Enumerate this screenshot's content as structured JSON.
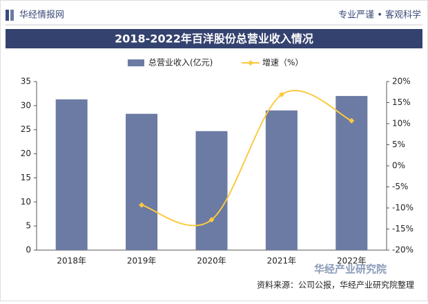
{
  "header": {
    "brand": "华经情报网",
    "slogan": "专业严谨 • 客观科学"
  },
  "chart_data": {
    "type": "bar_line",
    "title": "2018-2022年百洋股份总营业收入情况",
    "categories": [
      "2018年",
      "2019年",
      "2020年",
      "2021年",
      "2022年"
    ],
    "series": [
      {
        "name": "总营业收入(亿元)",
        "color": "#6b7ba3",
        "type": "bar",
        "values": [
          31.3,
          28.3,
          24.7,
          29.0,
          32.0
        ]
      },
      {
        "name": "增速（%）",
        "color": "#fcc93f",
        "type": "line",
        "axis": "y2",
        "values": [
          null,
          -9.3,
          -12.8,
          16.9,
          10.7
        ]
      }
    ],
    "ylim": [
      0,
      35
    ],
    "yticks": [
      0,
      5,
      10,
      15,
      20,
      25,
      30,
      35
    ],
    "y2lim": [
      -20,
      20
    ],
    "y2ticks": [
      {
        "value": -20,
        "label": "-20%"
      },
      {
        "value": -15,
        "label": "-15%"
      },
      {
        "value": -10,
        "label": "-10%"
      },
      {
        "value": -5,
        "label": "-5%"
      },
      {
        "value": 0,
        "label": "0%"
      },
      {
        "value": 5,
        "label": "5%"
      },
      {
        "value": 10,
        "label": "10%"
      },
      {
        "value": 15,
        "label": "15%"
      },
      {
        "value": 20,
        "label": "20%"
      }
    ],
    "legend": "top"
  },
  "footer": {
    "logo": "华经产业研究院",
    "source": "资料来源：公司公报，华经产业研究院整理"
  }
}
